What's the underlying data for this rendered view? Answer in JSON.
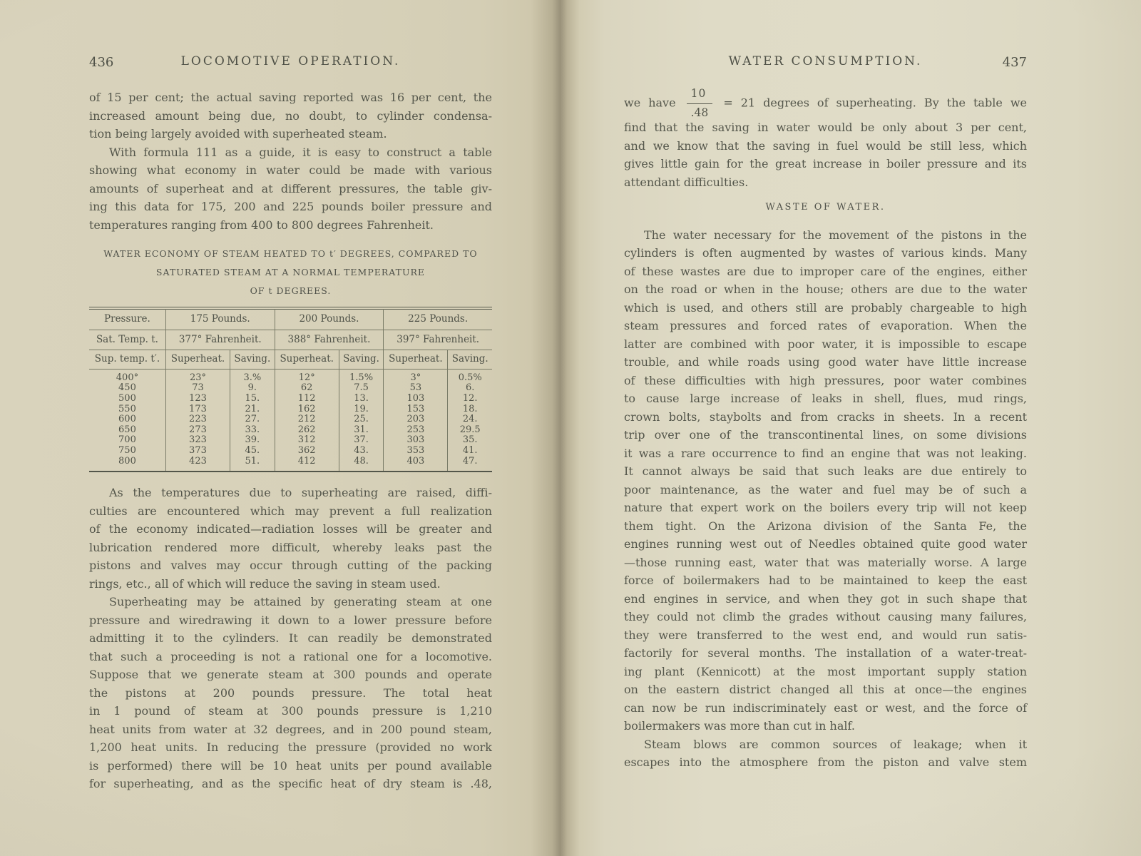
{
  "left_page": {
    "page_number": "436",
    "running_title": "LOCOMOTIVE OPERATION.",
    "content": [
      {
        "type": "paragraph",
        "indent": false,
        "complete": true,
        "lines": [
          "of 15 per cent; the actual saving reported was 16 per cent, the",
          "increased amount being due, no doubt, to cylinder condensa-",
          "tion being largely avoided with superheated steam."
        ]
      },
      {
        "type": "paragraph",
        "indent": true,
        "complete": true,
        "lines": [
          "With formula 111 as a guide, it is easy to construct a table",
          "showing what economy in water could be made with various",
          "amounts of superheat and at different pressures, the table giv-",
          "ing this data for 175, 200 and 225 pounds boiler pressure and",
          "temperatures ranging from 400 to 800 degrees Fahrenheit."
        ]
      },
      {
        "type": "caption",
        "lines": [
          "WATER ECONOMY OF STEAM HEATED TO t′ DEGREES, COMPARED TO",
          "SATURATED STEAM AT A NORMAL TEMPERATURE",
          "OF t DEGREES."
        ]
      },
      {
        "type": "table",
        "table": {
          "group_header": [
            "Pressure.",
            "175 Pounds.",
            "200 Pounds.",
            "225 Pounds."
          ],
          "temp_header": [
            "Sat. Temp. t.",
            "377° Fahrenheit.",
            "388° Fahrenheit.",
            "397° Fahrenheit."
          ],
          "col_header": [
            "Sup. temp. t′.",
            "Superheat.",
            "Saving.",
            "Superheat.",
            "Saving.",
            "Superheat.",
            "Saving."
          ],
          "rows": [
            [
              "400°",
              "23°",
              "3.%",
              "12°",
              "1.5%",
              "3°",
              "0.5%"
            ],
            [
              "450",
              "73",
              "9.",
              "62",
              "7.5",
              "53",
              "6."
            ],
            [
              "500",
              "123",
              "15.",
              "112",
              "13.",
              "103",
              "12."
            ],
            [
              "550",
              "173",
              "21.",
              "162",
              "19.",
              "153",
              "18."
            ],
            [
              "600",
              "223",
              "27.",
              "212",
              "25.",
              "203",
              "24."
            ],
            [
              "650",
              "273",
              "33.",
              "262",
              "31.",
              "253",
              "29.5"
            ],
            [
              "700",
              "323",
              "39.",
              "312",
              "37.",
              "303",
              "35."
            ],
            [
              "750",
              "373",
              "45.",
              "362",
              "43.",
              "353",
              "41."
            ],
            [
              "800",
              "423",
              "51.",
              "412",
              "48.",
              "403",
              "47."
            ]
          ]
        }
      },
      {
        "type": "paragraph",
        "indent": true,
        "complete": true,
        "after_table": true,
        "lines": [
          "As the temperatures due to superheating are raised, diffi-",
          "culties are encountered which may prevent a full realization",
          "of the economy indicated—radiation losses will be greater and",
          "lubrication rendered more difficult, whereby leaks past the",
          "pistons and valves may occur through cutting of the packing",
          "rings, etc., all of which will reduce the saving in steam used."
        ]
      },
      {
        "type": "paragraph",
        "indent": true,
        "complete": false,
        "lines": [
          "Superheating may be attained by generating steam at one",
          "pressure and wiredrawing it down to a lower pressure before",
          "admitting it to the cylinders.  It can readily be demonstrated",
          "that such a proceeding is not a rational one for a locomotive.",
          "Suppose that we generate steam at 300 pounds and operate",
          "the pistons at 200 pounds pressure.  The total heat",
          "in 1 pound of steam at 300 pounds pressure is 1,210",
          "heat units from water at 32 degrees, and in 200 pound steam,",
          "1,200 heat units.  In reducing the pressure (provided no work",
          "is performed) there will be 10 heat units per pound available",
          "for superheating, and as the specific heat of dry steam is .48,"
        ]
      }
    ]
  },
  "right_page": {
    "page_number": "437",
    "running_title": "WATER CONSUMPTION.",
    "content": [
      {
        "type": "fraction-paragraph",
        "complete": true,
        "before": "we have",
        "numerator": "10",
        "denominator": ".48",
        "after": "= 21 degrees of superheating.  By the table we",
        "lines": [
          "find that the saving in water would be only about 3 per cent,",
          "and we know that the saving in fuel would be still less, which",
          "gives little gain for the great increase in boiler pressure and its",
          "attendant difficulties."
        ]
      },
      {
        "type": "heading",
        "text": "WASTE OF WATER."
      },
      {
        "type": "paragraph",
        "indent": true,
        "complete": true,
        "lines": [
          "The water necessary for the movement of the pistons in the",
          "cylinders is often augmented by wastes of various kinds. Many",
          "of these wastes are due to improper care of the engines, either",
          "on the road or when in the house; others are due to the water",
          "which is used, and others still are probably chargeable to high",
          "steam pressures and forced rates of evaporation.  When the",
          "latter are combined with poor water, it is impossible to escape",
          "trouble, and while roads using good water have little increase",
          "of these difficulties with high pressures, poor water combines",
          "to cause large increase of leaks in shell, flues, mud rings,",
          "crown bolts, staybolts and from cracks in sheets.  In a recent",
          "trip over one of the transcontinental lines, on some divisions",
          "it was a rare occurrence to find an engine that was not leaking.",
          "It cannot always be said that such leaks are due entirely to",
          "poor maintenance, as the water and fuel may be of such a",
          "nature that expert work on the boilers every trip will not keep",
          "them tight.  On the Arizona division of the Santa Fe, the",
          "engines running west out of Needles obtained quite good water",
          "—those running east, water that was materially worse.  A large",
          "force of boilermakers had to be maintained to keep the east",
          "end engines in service, and when they got in such shape that",
          "they could not climb the grades without causing many failures,",
          "they were transferred to the west end, and would run satis-",
          "factorily for several months.  The installation of a water-treat-",
          "ing plant (Kennicott) at the most important supply station",
          "on the eastern district changed all this at once—the engines",
          "can now be run indiscriminately east or west, and the force of",
          "boilermakers was more than cut in half."
        ]
      },
      {
        "type": "paragraph",
        "indent": true,
        "complete": false,
        "lines": [
          "Steam blows are common sources of leakage; when it",
          "escapes into the atmosphere from the piston and valve stem"
        ]
      }
    ]
  }
}
